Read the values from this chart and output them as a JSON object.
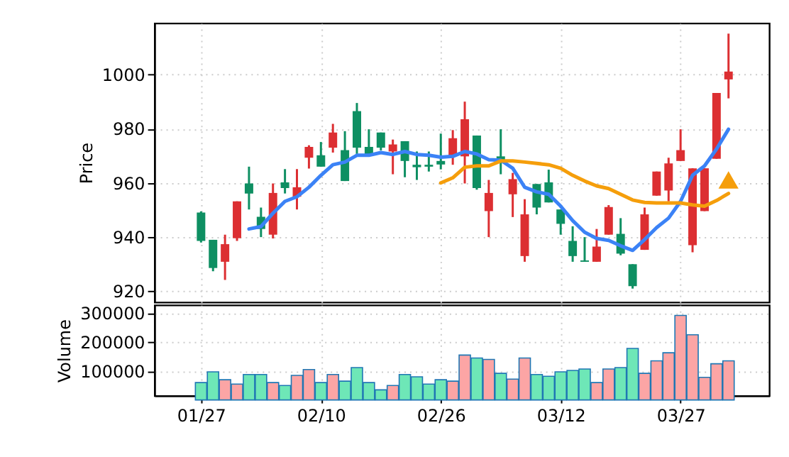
{
  "chart_data": [
    {
      "type": "candlestick",
      "ylabel": "Price",
      "categories": [
        null,
        null,
        null,
        null,
        null,
        null,
        null,
        null,
        null,
        null,
        null,
        null,
        null,
        null,
        null,
        null,
        null,
        null,
        null,
        null,
        null,
        null,
        null,
        null,
        null,
        null,
        null,
        null,
        null,
        null,
        null,
        null,
        null,
        null,
        null,
        null,
        null,
        null,
        null,
        null,
        null,
        null,
        null,
        null,
        null
      ],
      "ohlc": [
        [
          938.6,
          949.5,
          938.0,
          949.1
        ],
        [
          928.6,
          939.0,
          927.4,
          939.0
        ],
        [
          937.4,
          940.9,
          924.2,
          930.9
        ],
        [
          953.2,
          953.2,
          938.6,
          939.6
        ],
        [
          956.1,
          966.0,
          950.2,
          959.8
        ],
        [
          943.0,
          950.9,
          940.0,
          947.5
        ],
        [
          956.3,
          959.8,
          939.5,
          940.9
        ],
        [
          958.1,
          965.1,
          956.1,
          960.2
        ],
        [
          958.4,
          965.1,
          950.2,
          954.9
        ],
        [
          973.3,
          973.9,
          965.3,
          969.3
        ],
        [
          966.0,
          975.1,
          966.0,
          970.2
        ],
        [
          978.6,
          981.8,
          971.2,
          973.0
        ],
        [
          960.7,
          979.1,
          960.7,
          972.1
        ],
        [
          973.0,
          989.5,
          970.7,
          986.5
        ],
        [
          970.2,
          979.8,
          970.2,
          973.3
        ],
        [
          973.0,
          978.6,
          972.0,
          978.6
        ],
        [
          974.2,
          976.0,
          963.2,
          971.6
        ],
        [
          968.1,
          975.4,
          962.1,
          975.4
        ],
        [
          965.8,
          971.6,
          961.1,
          966.7
        ],
        [
          966.0,
          971.6,
          964.2,
          966.7
        ],
        [
          966.8,
          978.2,
          965.0,
          968.1
        ],
        [
          976.5,
          979.5,
          966.7,
          969.8
        ],
        [
          983.5,
          990.0,
          959.8,
          969.8
        ],
        [
          958.1,
          977.5,
          957.5,
          977.5
        ],
        [
          956.3,
          961.1,
          940.0,
          949.6
        ],
        [
          968.1,
          979.8,
          963.2,
          969.8
        ],
        [
          961.4,
          963.7,
          947.4,
          955.8
        ],
        [
          948.4,
          954.0,
          930.9,
          933.0
        ],
        [
          950.9,
          959.6,
          948.4,
          959.6
        ],
        [
          952.8,
          964.9,
          952.8,
          960.2
        ],
        [
          944.9,
          950.2,
          940.9,
          950.2
        ],
        [
          933.0,
          944.0,
          930.9,
          938.6
        ],
        [
          930.9,
          940.0,
          930.9,
          931.4
        ],
        [
          936.5,
          943.0,
          930.9,
          930.9
        ],
        [
          951.1,
          951.8,
          940.9,
          940.9
        ],
        [
          933.9,
          947.0,
          933.3,
          941.2
        ],
        [
          921.9,
          930.0,
          921.0,
          930.0
        ],
        [
          948.4,
          950.9,
          935.3,
          935.3
        ],
        [
          964.2,
          964.2,
          955.3,
          955.3
        ],
        [
          967.2,
          969.3,
          953.2,
          957.2
        ],
        [
          972.1,
          979.8,
          968.1,
          968.1
        ],
        [
          965.4,
          965.4,
          934.4,
          937.0
        ],
        [
          965.4,
          965.4,
          949.6,
          949.6
        ],
        [
          993.2,
          993.2,
          968.9,
          968.9
        ],
        [
          1001.1,
          1015.1,
          991.2,
          998.2
        ]
      ],
      "colors": [
        "#0e8f62",
        "#0e8f62",
        "#dc2f32",
        "#dc2f32",
        "#0e8f62",
        "#0e8f62",
        "#dc2f32",
        "#0e8f62",
        "#dc2f32",
        "#dc2f32",
        "#0e8f62",
        "#dc2f32",
        "#0e8f62",
        "#0e8f62",
        "#0e8f62",
        "#0e8f62",
        "#dc2f32",
        "#0e8f62",
        "#0e8f62",
        "#0e8f62",
        "#0e8f62",
        "#dc2f32",
        "#dc2f32",
        "#0e8f62",
        "#dc2f32",
        "#0e8f62",
        "#dc2f32",
        "#dc2f32",
        "#0e8f62",
        "#0e8f62",
        "#0e8f62",
        "#0e8f62",
        "#0e8f62",
        "#dc2f32",
        "#dc2f32",
        "#0e8f62",
        "#0e8f62",
        "#dc2f32",
        "#dc2f32",
        "#dc2f32",
        "#dc2f32",
        "#dc2f32",
        "#dc2f32",
        "#dc2f32",
        "#dc2f32"
      ],
      "series": [
        {
          "type": "line",
          "color": "#3b82f6",
          "values": [
            null,
            null,
            null,
            null,
            943.0,
            943.9,
            948.8,
            953.2,
            954.9,
            958.4,
            962.8,
            966.7,
            967.7,
            970.2,
            970.2,
            971.2,
            970.5,
            971.6,
            970.5,
            970.2,
            969.5,
            969.8,
            971.6,
            970.7,
            968.6,
            968.4,
            965.4,
            958.4,
            956.7,
            955.8,
            951.4,
            946.1,
            941.8,
            939.5,
            938.8,
            936.8,
            935.1,
            939.1,
            943.5,
            947.0,
            953.2,
            962.8,
            966.3,
            972.5,
            979.8
          ]
        },
        {
          "type": "line",
          "color": "#f59e0b",
          "values": [
            null,
            null,
            null,
            null,
            null,
            null,
            null,
            null,
            null,
            null,
            null,
            null,
            null,
            null,
            null,
            null,
            null,
            null,
            null,
            null,
            960.0,
            961.9,
            965.8,
            966.3,
            966.3,
            968.1,
            968.1,
            967.7,
            967.2,
            966.7,
            965.4,
            962.8,
            960.7,
            958.9,
            957.9,
            955.8,
            953.7,
            952.8,
            952.6,
            952.6,
            952.6,
            951.9,
            951.4,
            953.5,
            956.1
          ]
        },
        {
          "type": "scatter",
          "marker": "triangle",
          "color": "#f59e0b",
          "values": [
            null,
            null,
            null,
            null,
            null,
            null,
            null,
            null,
            null,
            null,
            null,
            null,
            null,
            null,
            null,
            null,
            null,
            null,
            null,
            null,
            null,
            null,
            null,
            null,
            null,
            null,
            null,
            null,
            null,
            null,
            null,
            null,
            null,
            null,
            null,
            null,
            null,
            null,
            null,
            null,
            null,
            null,
            null,
            null,
            961.1
          ]
        }
      ],
      "ylim": [
        916,
        1019
      ],
      "yticks": [
        920,
        940,
        960,
        980,
        1000
      ],
      "grid": true,
      "tick_labels": "y"
    },
    {
      "type": "bar",
      "ylabel": "Volume",
      "categories": [
        "01/27",
        null,
        null,
        null,
        null,
        null,
        null,
        null,
        null,
        null,
        "02/10",
        null,
        null,
        null,
        null,
        null,
        null,
        null,
        null,
        null,
        "02/26",
        null,
        null,
        null,
        null,
        null,
        null,
        null,
        null,
        null,
        "03/12",
        null,
        null,
        null,
        null,
        null,
        null,
        null,
        null,
        null,
        "03/27",
        null,
        null,
        null,
        null
      ],
      "values": [
        60000,
        97000,
        70000,
        55000,
        88000,
        88000,
        60000,
        50000,
        85000,
        105000,
        60000,
        88000,
        65000,
        112000,
        60000,
        35000,
        50000,
        88000,
        80000,
        55000,
        70000,
        65000,
        155000,
        145000,
        140000,
        92000,
        72000,
        145000,
        88000,
        82000,
        97000,
        102000,
        107000,
        60000,
        107000,
        112000,
        178000,
        92000,
        135000,
        163000,
        292000,
        225000,
        78000,
        125000,
        135000
      ],
      "colors": [
        "#6ee7b7",
        "#6ee7b7",
        "#fca5a5",
        "#fca5a5",
        "#6ee7b7",
        "#6ee7b7",
        "#fca5a5",
        "#6ee7b7",
        "#fca5a5",
        "#fca5a5",
        "#6ee7b7",
        "#fca5a5",
        "#6ee7b7",
        "#6ee7b7",
        "#6ee7b7",
        "#6ee7b7",
        "#fca5a5",
        "#6ee7b7",
        "#6ee7b7",
        "#6ee7b7",
        "#6ee7b7",
        "#fca5a5",
        "#fca5a5",
        "#6ee7b7",
        "#fca5a5",
        "#6ee7b7",
        "#fca5a5",
        "#fca5a5",
        "#6ee7b7",
        "#6ee7b7",
        "#6ee7b7",
        "#6ee7b7",
        "#6ee7b7",
        "#fca5a5",
        "#fca5a5",
        "#6ee7b7",
        "#6ee7b7",
        "#fca5a5",
        "#fca5a5",
        "#fca5a5",
        "#fca5a5",
        "#fca5a5",
        "#fca5a5",
        "#fca5a5",
        "#fca5a5"
      ],
      "ylim": [
        15000,
        328000
      ],
      "yticks": [
        100000,
        200000,
        300000
      ],
      "grid": true
    }
  ]
}
